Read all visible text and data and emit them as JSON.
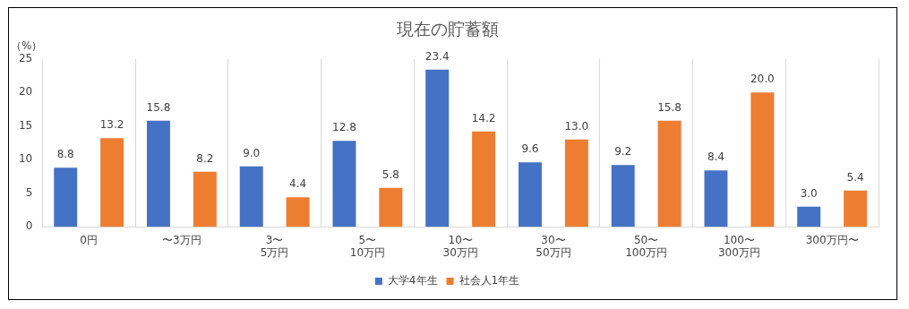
{
  "chart_data": {
    "type": "bar",
    "title": "現在の貯蓄額",
    "ylabel": "（%）",
    "categories": [
      "0円",
      "〜3万円",
      "3〜\n5万円",
      "5〜\n10万円",
      "10〜\n30万円",
      "30〜\n50万円",
      "50〜\n100万円",
      "100〜\n300万円",
      "300万円〜"
    ],
    "series": [
      {
        "name": "大学4年生",
        "color": "#4472c4",
        "values": [
          8.8,
          15.8,
          9.0,
          12.8,
          23.4,
          9.6,
          9.2,
          8.4,
          3.0
        ],
        "value_labels": [
          "8.8",
          "15.8",
          "9.0",
          "12.8",
          "23.4",
          "9.6",
          "9.2",
          "8.4",
          "3.0"
        ]
      },
      {
        "name": "社会人1年生",
        "color": "#ed7d31",
        "values": [
          13.2,
          8.2,
          4.4,
          5.8,
          14.2,
          13.0,
          15.8,
          20.0,
          5.4
        ],
        "value_labels": [
          "13.2",
          "8.2",
          "4.4",
          "5.8",
          "14.2",
          "13.0",
          "15.8",
          "20.0",
          "5.4"
        ]
      }
    ],
    "ylim": [
      0,
      25
    ],
    "yticks": [
      0,
      5,
      10,
      15,
      20,
      25
    ],
    "grid": "x",
    "legend": "bottom"
  }
}
